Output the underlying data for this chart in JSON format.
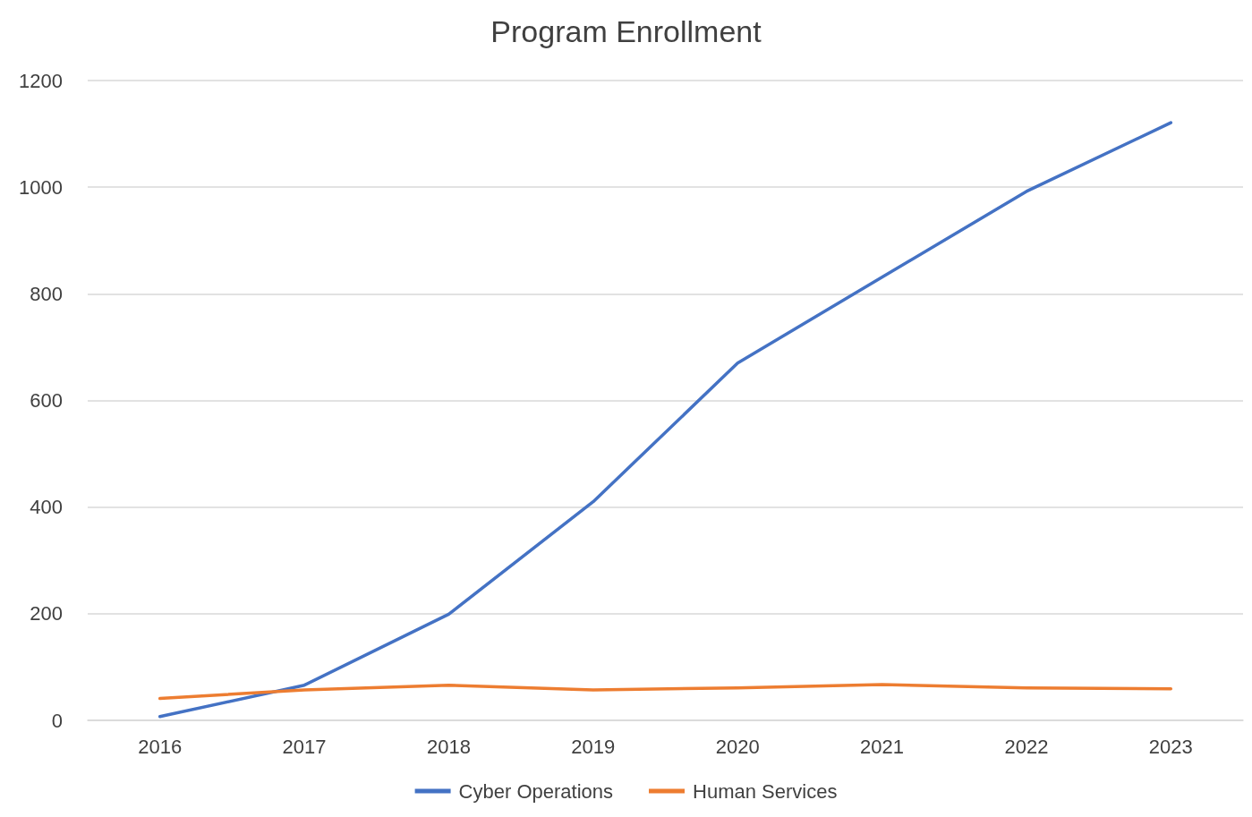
{
  "chart_data": {
    "type": "line",
    "title": "Program Enrollment",
    "categories": [
      "2016",
      "2017",
      "2018",
      "2019",
      "2020",
      "2021",
      "2022",
      "2023"
    ],
    "series": [
      {
        "name": "Cyber Operations",
        "color": "#4472c4",
        "values": [
          7,
          66,
          199,
          410,
          670,
          831,
          992,
          1121
        ]
      },
      {
        "name": "Human Services",
        "color": "#ed7d31",
        "values": [
          41,
          57,
          66,
          57,
          61,
          67,
          61,
          59
        ]
      }
    ],
    "ylim": [
      0,
      1200
    ],
    "yticks": [
      0,
      200,
      400,
      600,
      800,
      1000,
      1200
    ],
    "grid": "y",
    "legend": "bottom",
    "marker": "none",
    "line_style": "solid"
  }
}
